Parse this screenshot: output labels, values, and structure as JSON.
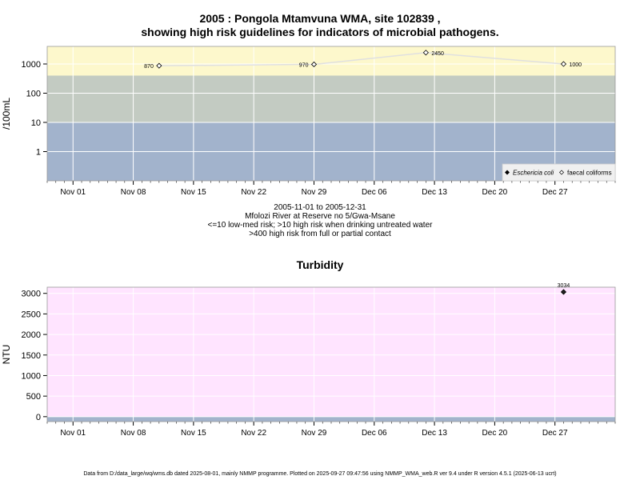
{
  "header": {
    "title_line1": "2005 : Pongola Mtamvuna WMA, site 102839 ,",
    "title_line2": "showing high risk guidelines for indicators of microbial pathogens."
  },
  "microbial_caption": {
    "date_range": "2005-11-01 to 2005-12-31",
    "location": "Mfolozi River at Reserve no 5/Gwa-Msane",
    "risk_low": "<=10 low-med risk; >10 high risk when drinking untreated water",
    "risk_high": ">400 high risk from full or partial contact"
  },
  "footer": {
    "text": "Data from D:/data_large/wq/wms.db dated 2025-08-01, mainly NMMP programme. Plotted on 2025-09-27 09:47:56 using NMMP_WMA_web.R ver 9.4 under R version 4.5.1 (2025-06-13 ucrt)"
  },
  "chart_data": [
    {
      "type": "line",
      "ylabel": "/100mL",
      "yscale": "log",
      "ylim": [
        0.1,
        4000
      ],
      "yticks": [
        1,
        10,
        100,
        1000
      ],
      "ytick_labels": [
        "1",
        "10",
        "100",
        "1000"
      ],
      "xlim": [
        "2005-10-29",
        "2006-01-03"
      ],
      "xticks": [
        "2005-11-01",
        "2005-11-08",
        "2005-11-15",
        "2005-11-22",
        "2005-11-29",
        "2005-12-06",
        "2005-12-13",
        "2005-12-20",
        "2005-12-27"
      ],
      "xtick_labels": [
        "Nov 01",
        "Nov 08",
        "Nov 15",
        "Nov 22",
        "Nov 29",
        "Dec 06",
        "Dec 13",
        "Dec 20",
        "Dec 27"
      ],
      "bands": [
        {
          "from": 0.1,
          "to": 10,
          "color": "#a2b3cc"
        },
        {
          "from": 10,
          "to": 400,
          "color": "#c3cbc2"
        },
        {
          "from": 400,
          "to": 4000,
          "color": "#fdf8cc"
        }
      ],
      "grid": true,
      "legend_position": "bottom-right",
      "series": [
        {
          "name": "Eschericia coli",
          "marker": "filled-diamond",
          "x": [],
          "y": []
        },
        {
          "name": "faecal coliforms",
          "marker": "open-diamond",
          "x": [
            "2005-11-11",
            "2005-11-29",
            "2005-12-12",
            "2005-12-28"
          ],
          "y": [
            870,
            970,
            2450,
            1000
          ],
          "labels": [
            "870",
            "970",
            "2450",
            "1000"
          ]
        }
      ]
    },
    {
      "type": "scatter",
      "title": "Turbidity",
      "ylabel": "NTU",
      "ylim": [
        -120,
        3150
      ],
      "yticks": [
        0,
        500,
        1000,
        1500,
        2000,
        2500,
        3000
      ],
      "ytick_labels": [
        "0",
        "500",
        "1000",
        "1500",
        "2000",
        "2500",
        "3000"
      ],
      "xlim": [
        "2005-10-29",
        "2006-01-03"
      ],
      "xticks": [
        "2005-11-01",
        "2005-11-08",
        "2005-11-15",
        "2005-11-22",
        "2005-11-29",
        "2005-12-06",
        "2005-12-13",
        "2005-12-20",
        "2005-12-27"
      ],
      "xtick_labels": [
        "Nov 01",
        "Nov 08",
        "Nov 15",
        "Nov 22",
        "Nov 29",
        "Dec 06",
        "Dec 13",
        "Dec 20",
        "Dec 27"
      ],
      "bands": [
        {
          "from": -120,
          "to": 0,
          "color": "#a2b3cc"
        },
        {
          "from": 0,
          "to": 3150,
          "color": "#ffe4ff"
        }
      ],
      "grid": true,
      "series": [
        {
          "x": [
            "2005-12-28"
          ],
          "y": [
            3034
          ],
          "labels": [
            "3034"
          ]
        }
      ]
    }
  ]
}
